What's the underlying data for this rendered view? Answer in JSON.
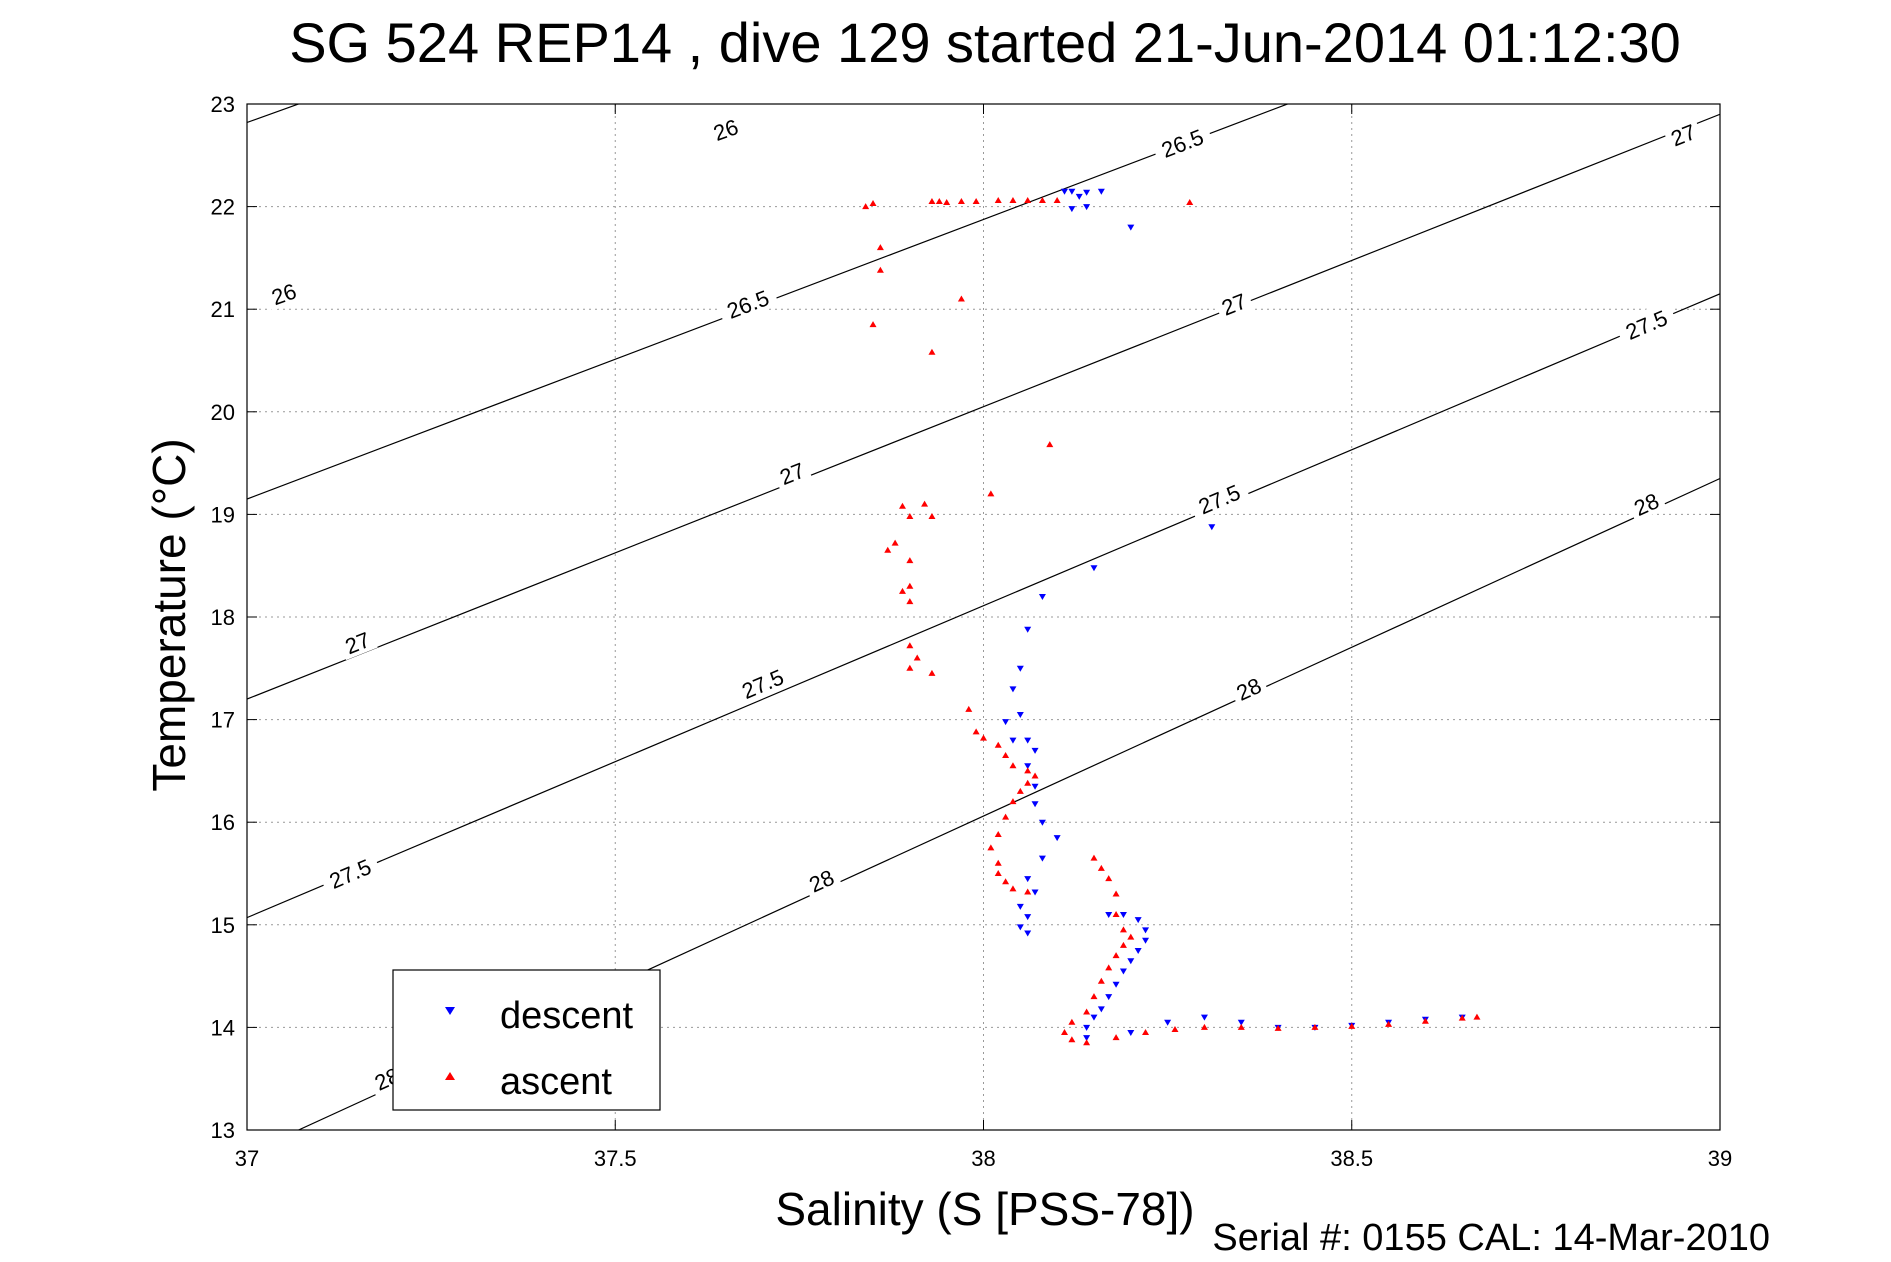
{
  "chart_data": {
    "type": "scatter",
    "title": "SG 524   REP14  , dive 129 started 21-Jun-2014 01:12:30",
    "xlabel": "Salinity (S [PSS-78])",
    "ylabel": "Temperature (°C)",
    "xlim": [
      37,
      39
    ],
    "ylim": [
      13,
      23
    ],
    "x_ticks": [
      37,
      37.5,
      38,
      38.5,
      39
    ],
    "y_ticks": [
      13,
      14,
      15,
      16,
      17,
      18,
      19,
      20,
      21,
      22,
      23
    ],
    "x_tick_labels": [
      "37",
      "37.5",
      "38",
      "38.5",
      "39"
    ],
    "y_tick_labels": [
      "13",
      "14",
      "15",
      "16",
      "17",
      "18",
      "19",
      "20",
      "21",
      "22",
      "23"
    ],
    "grid": true,
    "legend_position": "bottom-left",
    "footer": "Serial #: 0155  CAL: 14-Mar-2010",
    "density_contours": [
      {
        "level": 26,
        "points": [
          [
            37.0,
            22.82
          ],
          [
            39.0,
            27.97
          ]
        ],
        "labels": [
          {
            "text": "26",
            "x": 37.65,
            "y": 22.75
          },
          {
            "text": "26",
            "x": 37.05,
            "y": 21.15
          }
        ]
      },
      {
        "level": 26.5,
        "points": [
          [
            37.0,
            19.15
          ],
          [
            39.0,
            24.6
          ]
        ],
        "labels": [
          {
            "text": "26.5",
            "x": 38.27,
            "y": 22.62
          },
          {
            "text": "26.5",
            "x": 37.68,
            "y": 21.05
          }
        ]
      },
      {
        "level": 27,
        "points": [
          [
            37.0,
            17.2
          ],
          [
            39.0,
            22.9
          ]
        ],
        "labels": [
          {
            "text": "27",
            "x": 38.95,
            "y": 22.7
          },
          {
            "text": "27",
            "x": 38.34,
            "y": 21.05
          },
          {
            "text": "27",
            "x": 37.74,
            "y": 19.4
          },
          {
            "text": "27",
            "x": 37.15,
            "y": 17.75
          }
        ]
      },
      {
        "level": 27.5,
        "points": [
          [
            37.0,
            15.07
          ],
          [
            39.0,
            21.15
          ]
        ],
        "labels": [
          {
            "text": "27.5",
            "x": 38.9,
            "y": 20.85
          },
          {
            "text": "27.5",
            "x": 38.32,
            "y": 19.15
          },
          {
            "text": "27.5",
            "x": 37.7,
            "y": 17.35
          },
          {
            "text": "27.5",
            "x": 37.14,
            "y": 15.5
          }
        ]
      },
      {
        "level": 28,
        "points": [
          [
            37.07,
            13.0
          ],
          [
            39.0,
            19.35
          ]
        ],
        "labels": [
          {
            "text": "28",
            "x": 38.9,
            "y": 19.1
          },
          {
            "text": "28",
            "x": 38.36,
            "y": 17.3
          },
          {
            "text": "28",
            "x": 37.78,
            "y": 15.43
          },
          {
            "text": "28",
            "x": 37.19,
            "y": 13.5
          }
        ]
      }
    ],
    "series": [
      {
        "name": "descent",
        "color": "#0000ff",
        "marker": "triangle-down",
        "points": [
          [
            38.11,
            22.15
          ],
          [
            38.12,
            22.15
          ],
          [
            38.13,
            22.1
          ],
          [
            38.14,
            22.14
          ],
          [
            38.16,
            22.15
          ],
          [
            38.12,
            21.98
          ],
          [
            38.14,
            22.0
          ],
          [
            38.2,
            21.8
          ],
          [
            38.31,
            18.88
          ],
          [
            38.15,
            18.48
          ],
          [
            38.08,
            18.2
          ],
          [
            38.06,
            17.88
          ],
          [
            38.05,
            17.5
          ],
          [
            38.04,
            17.3
          ],
          [
            38.05,
            17.05
          ],
          [
            38.03,
            16.98
          ],
          [
            38.04,
            16.8
          ],
          [
            38.06,
            16.8
          ],
          [
            38.07,
            16.7
          ],
          [
            38.06,
            16.55
          ],
          [
            38.07,
            16.35
          ],
          [
            38.07,
            16.18
          ],
          [
            38.08,
            16.0
          ],
          [
            38.1,
            15.85
          ],
          [
            38.08,
            15.65
          ],
          [
            38.06,
            15.45
          ],
          [
            38.07,
            15.32
          ],
          [
            38.05,
            15.18
          ],
          [
            38.06,
            15.08
          ],
          [
            38.05,
            14.98
          ],
          [
            38.06,
            14.92
          ],
          [
            38.17,
            15.1
          ],
          [
            38.19,
            15.1
          ],
          [
            38.21,
            15.05
          ],
          [
            38.22,
            14.95
          ],
          [
            38.22,
            14.85
          ],
          [
            38.21,
            14.75
          ],
          [
            38.2,
            14.65
          ],
          [
            38.19,
            14.55
          ],
          [
            38.18,
            14.42
          ],
          [
            38.17,
            14.3
          ],
          [
            38.16,
            14.18
          ],
          [
            38.15,
            14.1
          ],
          [
            38.14,
            14.0
          ],
          [
            38.14,
            13.9
          ],
          [
            38.2,
            13.95
          ],
          [
            38.25,
            14.05
          ],
          [
            38.3,
            14.1
          ],
          [
            38.35,
            14.05
          ],
          [
            38.4,
            14.0
          ],
          [
            38.45,
            14.0
          ],
          [
            38.5,
            14.02
          ],
          [
            38.55,
            14.05
          ],
          [
            38.6,
            14.08
          ],
          [
            38.65,
            14.1
          ]
        ]
      },
      {
        "name": "ascent",
        "color": "#ff0000",
        "marker": "triangle-up",
        "points": [
          [
            37.84,
            22.0
          ],
          [
            37.85,
            22.03
          ],
          [
            37.93,
            22.05
          ],
          [
            37.94,
            22.05
          ],
          [
            37.95,
            22.04
          ],
          [
            37.97,
            22.05
          ],
          [
            37.99,
            22.05
          ],
          [
            38.02,
            22.06
          ],
          [
            38.04,
            22.06
          ],
          [
            38.06,
            22.06
          ],
          [
            38.08,
            22.06
          ],
          [
            38.1,
            22.06
          ],
          [
            38.28,
            22.04
          ],
          [
            37.86,
            21.6
          ],
          [
            37.86,
            21.38
          ],
          [
            37.97,
            21.1
          ],
          [
            37.85,
            20.85
          ],
          [
            37.93,
            20.58
          ],
          [
            38.09,
            19.68
          ],
          [
            38.01,
            19.2
          ],
          [
            37.89,
            19.08
          ],
          [
            37.9,
            18.98
          ],
          [
            37.92,
            19.1
          ],
          [
            37.93,
            18.98
          ],
          [
            37.88,
            18.72
          ],
          [
            37.87,
            18.65
          ],
          [
            37.9,
            18.55
          ],
          [
            37.9,
            18.3
          ],
          [
            37.89,
            18.25
          ],
          [
            37.9,
            18.15
          ],
          [
            37.9,
            17.72
          ],
          [
            37.91,
            17.6
          ],
          [
            37.9,
            17.5
          ],
          [
            37.93,
            17.45
          ],
          [
            37.98,
            17.1
          ],
          [
            37.99,
            16.88
          ],
          [
            38.0,
            16.82
          ],
          [
            38.02,
            16.75
          ],
          [
            38.03,
            16.65
          ],
          [
            38.04,
            16.55
          ],
          [
            38.06,
            16.5
          ],
          [
            38.07,
            16.45
          ],
          [
            38.06,
            16.38
          ],
          [
            38.05,
            16.3
          ],
          [
            38.04,
            16.2
          ],
          [
            38.03,
            16.05
          ],
          [
            38.02,
            15.88
          ],
          [
            38.01,
            15.75
          ],
          [
            38.02,
            15.6
          ],
          [
            38.02,
            15.5
          ],
          [
            38.03,
            15.42
          ],
          [
            38.04,
            15.35
          ],
          [
            38.06,
            15.32
          ],
          [
            38.15,
            15.65
          ],
          [
            38.16,
            15.55
          ],
          [
            38.17,
            15.45
          ],
          [
            38.18,
            15.3
          ],
          [
            38.18,
            15.1
          ],
          [
            38.19,
            14.95
          ],
          [
            38.2,
            14.88
          ],
          [
            38.19,
            14.8
          ],
          [
            38.18,
            14.7
          ],
          [
            38.17,
            14.58
          ],
          [
            38.16,
            14.45
          ],
          [
            38.15,
            14.3
          ],
          [
            38.14,
            14.15
          ],
          [
            38.12,
            14.05
          ],
          [
            38.11,
            13.95
          ],
          [
            38.12,
            13.88
          ],
          [
            38.14,
            13.85
          ],
          [
            38.18,
            13.9
          ],
          [
            38.22,
            13.95
          ],
          [
            38.26,
            13.98
          ],
          [
            38.3,
            14.0
          ],
          [
            38.35,
            14.0
          ],
          [
            38.4,
            13.99
          ],
          [
            38.45,
            14.0
          ],
          [
            38.5,
            14.01
          ],
          [
            38.55,
            14.03
          ],
          [
            38.6,
            14.06
          ],
          [
            38.65,
            14.09
          ],
          [
            38.67,
            14.1
          ]
        ]
      }
    ]
  }
}
